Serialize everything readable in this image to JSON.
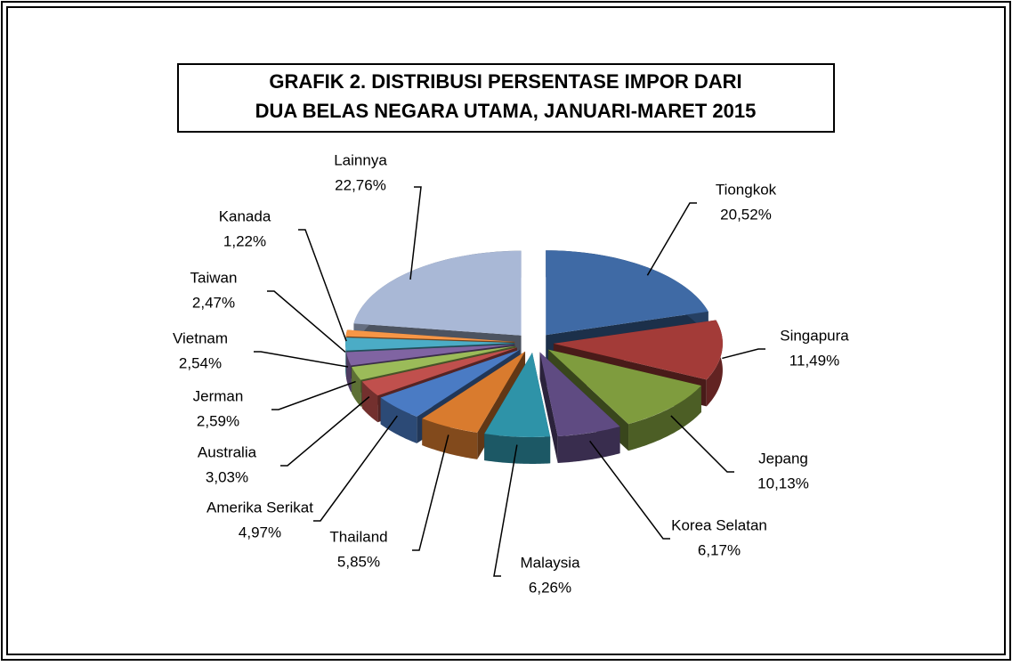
{
  "chart_data": {
    "type": "pie",
    "title": [
      "GRAFIK 2. DISTRIBUSI  PERSENTASE IMPOR DARI",
      "DUA BELAS NEGARA UTAMA, JANUARI-MARET 2015"
    ],
    "categories": [
      "Tiongkok",
      "Singapura",
      "Jepang",
      "Korea Selatan",
      "Malaysia",
      "Thailand",
      "Amerika Serikat",
      "Australia",
      "Jerman",
      "Vietnam",
      "Taiwan",
      "Kanada",
      "Lainnya"
    ],
    "values": [
      20.52,
      11.49,
      10.13,
      6.17,
      6.26,
      5.85,
      4.97,
      3.03,
      2.59,
      2.54,
      2.47,
      1.22,
      22.76
    ],
    "value_labels": [
      "20,52%",
      "11,49%",
      "10,13%",
      "6,17%",
      "6,26%",
      "5,85%",
      "4,97%",
      "3,03%",
      "2,59%",
      "2,54%",
      "2,47%",
      "1,22%",
      "22,76%"
    ],
    "colors": [
      "#3f6aa5",
      "#a33b38",
      "#7f9c3e",
      "#5f4b82",
      "#2e93a8",
      "#d97b2e",
      "#4a7bc4",
      "#c0504d",
      "#9bbb59",
      "#8064a2",
      "#4bacc6",
      "#f79646",
      "#a9b8d6"
    ]
  }
}
